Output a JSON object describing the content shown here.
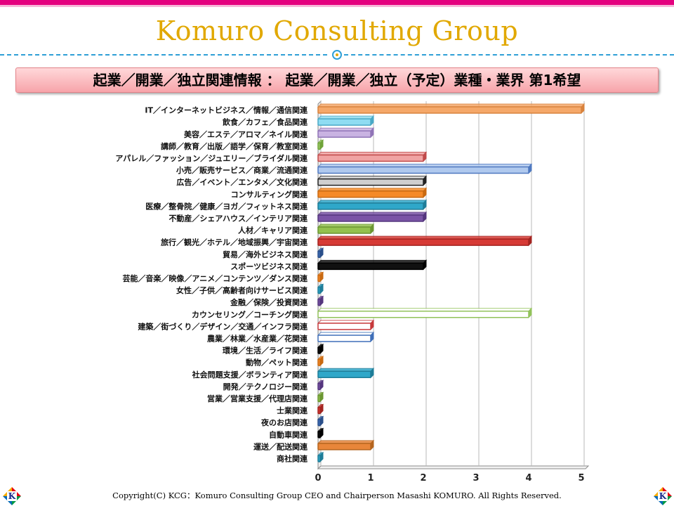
{
  "header": {
    "title": "Komuro Consulting Group"
  },
  "banner": {
    "text": "起業／開業／独立関連情報 ： 起業／開業／独立（予定）業種・業界 第1希望"
  },
  "footer": {
    "copyright": "Copyright(C) KCG：Komuro Consulting Group CEO and Chairperson Masashi KOMURO. All Rights Reserved.",
    "logo_letter": "K"
  },
  "chart_data": {
    "type": "bar",
    "orientation": "horizontal",
    "style": "3d",
    "title": "",
    "xlabel": "",
    "ylabel": "",
    "xlim": [
      0,
      5
    ],
    "xticks": [
      0,
      1,
      2,
      3,
      4,
      5
    ],
    "grid": "vertical",
    "legend": "none",
    "categories": [
      "IT／インターネットビジネス／情報／通信関連",
      "飲食／カフェ／食品関連",
      "美容／エステ／アロマ／ネイル関連",
      "講師／教育／出版／語学／保育／教室関連",
      "アパレル／ファッション／ジュエリー／ブライダル関連",
      "小売／販売サービス／商業／流通関連",
      "広告／イベント／エンタメ／文化関連",
      "コンサルティング関連",
      "医療／整骨院／健康／ヨガ／フィットネス関連",
      "不動産／シェアハウス／インテリア関連",
      "人材／キャリア関連",
      "旅行／観光／ホテル／地域振興／宇宙関連",
      "貿易／海外ビジネス関連",
      "スポーツビジネス関連",
      "芸能／音楽／映像／アニメ／コンテンツ／ダンス関連",
      "女性／子供／高齢者向けサービス関連",
      "金融／保険／投資関連",
      "カウンセリング／コーチング関連",
      "建築／街づくり／デザイン／交通／インフラ関連",
      "農業／林業／水産業／花関連",
      "環境／生活／ライフ関連",
      "動物／ペット関連",
      "社会問題支援／ボランティア関連",
      "開発／テクノロジー関連",
      "営業／営業支援／代理店関連",
      "士業関連",
      "夜のお店関連",
      "自動車関連",
      "運送／配送関連",
      "商社関連"
    ],
    "values": [
      5,
      1,
      1,
      0,
      2,
      4,
      2,
      2,
      2,
      2,
      1,
      4,
      0,
      2,
      0,
      0,
      0,
      4,
      1,
      1,
      0,
      0,
      1,
      0,
      0,
      0,
      0,
      0,
      1,
      0
    ],
    "bar_styles": [
      {
        "fill": "#f5a869",
        "stroke": "#d8823d"
      },
      {
        "fill": "#8fdcf2",
        "stroke": "#4aa9c6"
      },
      {
        "fill": "#c9b3e2",
        "stroke": "#9074b7"
      },
      {
        "fill": "#9fcd6b",
        "stroke": "#70a43a"
      },
      {
        "fill": "#f0a3a3",
        "stroke": "#c04a4a"
      },
      {
        "fill": "#b0c9ee",
        "stroke": "#4f79c0"
      },
      {
        "fill": "#cfcfcf",
        "stroke": "#222222"
      },
      {
        "fill": "#f58a28",
        "stroke": "#c96a12"
      },
      {
        "fill": "#2fa7c9",
        "stroke": "#1f7d98"
      },
      {
        "fill": "#7a54a6",
        "stroke": "#55367e"
      },
      {
        "fill": "#93c14e",
        "stroke": "#6b9632"
      },
      {
        "fill": "#d63a35",
        "stroke": "#a32420"
      },
      {
        "fill": "#3f6fb8",
        "stroke": "#2a4f8a"
      },
      {
        "fill": "#111111",
        "stroke": "#000000"
      },
      {
        "fill": "#f58a28",
        "stroke": "#c96a12"
      },
      {
        "fill": "#2fa7c9",
        "stroke": "#1f7d98"
      },
      {
        "fill": "#7a54a6",
        "stroke": "#55367e"
      },
      {
        "fill": "#ffffff",
        "stroke": "#92c25a"
      },
      {
        "fill": "#ffffff",
        "stroke": "#c6393b"
      },
      {
        "fill": "#ffffff",
        "stroke": "#3f6fb8"
      },
      {
        "fill": "#111111",
        "stroke": "#000000"
      },
      {
        "fill": "#f58a28",
        "stroke": "#c96a12"
      },
      {
        "fill": "#2fa7c9",
        "stroke": "#1f7d98"
      },
      {
        "fill": "#7a54a6",
        "stroke": "#55367e"
      },
      {
        "fill": "#93c14e",
        "stroke": "#6b9632"
      },
      {
        "fill": "#d63a35",
        "stroke": "#a32420"
      },
      {
        "fill": "#3f6fb8",
        "stroke": "#2a4f8a"
      },
      {
        "fill": "#111111",
        "stroke": "#000000"
      },
      {
        "fill": "#e8863a",
        "stroke": "#b5651f"
      },
      {
        "fill": "#2fa7c9",
        "stroke": "#1f7d98"
      }
    ]
  },
  "colors": {
    "brand_magenta": "#e4007f",
    "title_gold": "#e1a800",
    "rule_blue": "#2e9fd6",
    "banner_pink": "#f7a4aa"
  }
}
